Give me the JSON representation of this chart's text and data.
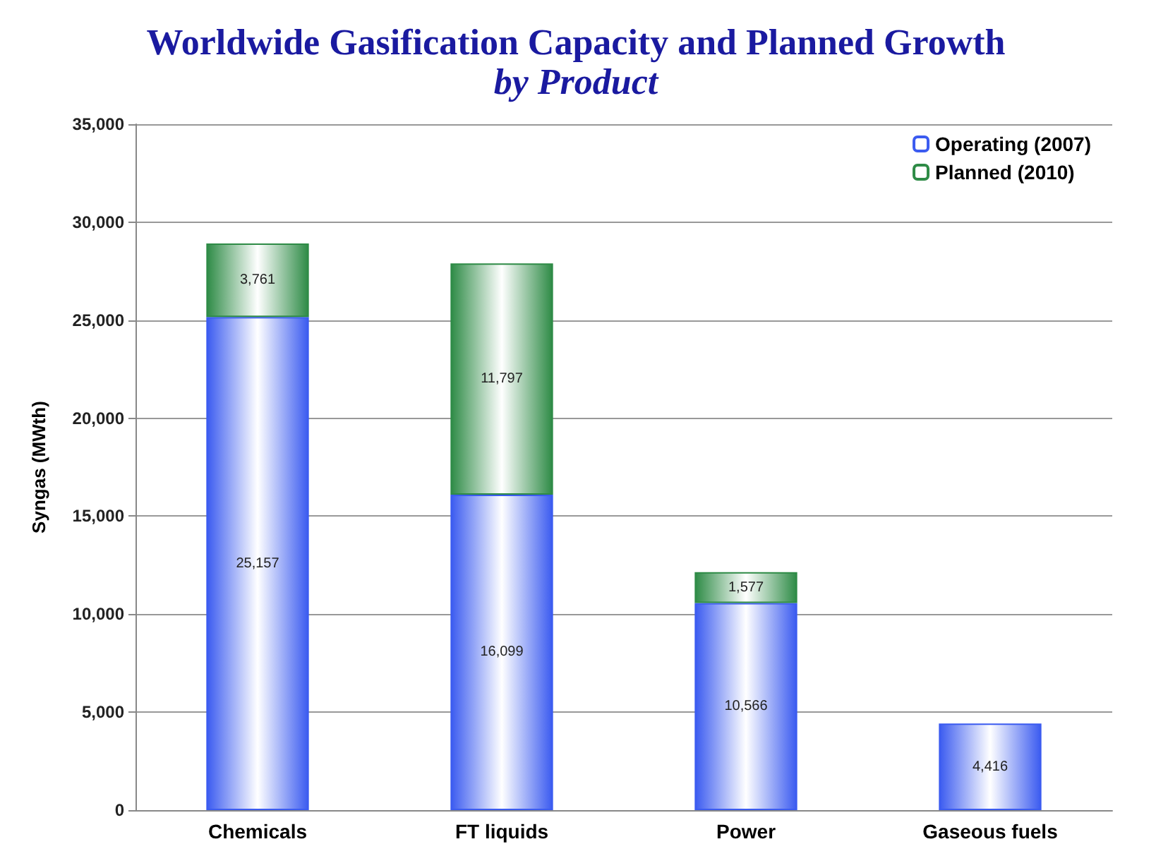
{
  "chart_data": {
    "type": "bar",
    "stacked": true,
    "title": "Worldwide Gasification Capacity and Planned Growth",
    "subtitle": "by Product",
    "ylabel": "Syngas (MWth)",
    "categories": [
      "Chemicals",
      "FT liquids",
      "Power",
      "Gaseous fuels"
    ],
    "series": [
      {
        "name": "Operating (2007)",
        "color": "#3b5bf0",
        "values": [
          25157,
          16099,
          10566,
          4416
        ],
        "value_labels": [
          "25,157",
          "16,099",
          "10,566",
          "4,416"
        ]
      },
      {
        "name": "Planned (2010)",
        "color": "#2e8b46",
        "values": [
          3761,
          11797,
          1577,
          null
        ],
        "value_labels": [
          "3,761",
          "11,797",
          "1,577",
          null
        ]
      }
    ],
    "ylim": [
      0,
      35000
    ],
    "yticks": [
      {
        "value": 0,
        "label": "0"
      },
      {
        "value": 5000,
        "label": "5,000"
      },
      {
        "value": 10000,
        "label": "10,000"
      },
      {
        "value": 15000,
        "label": "15,000"
      },
      {
        "value": 20000,
        "label": "20,000"
      },
      {
        "value": 25000,
        "label": "25,000"
      },
      {
        "value": 30000,
        "label": "30,000"
      },
      {
        "value": 35000,
        "label": "35,000"
      }
    ],
    "grid": "y",
    "legend": "top right"
  }
}
